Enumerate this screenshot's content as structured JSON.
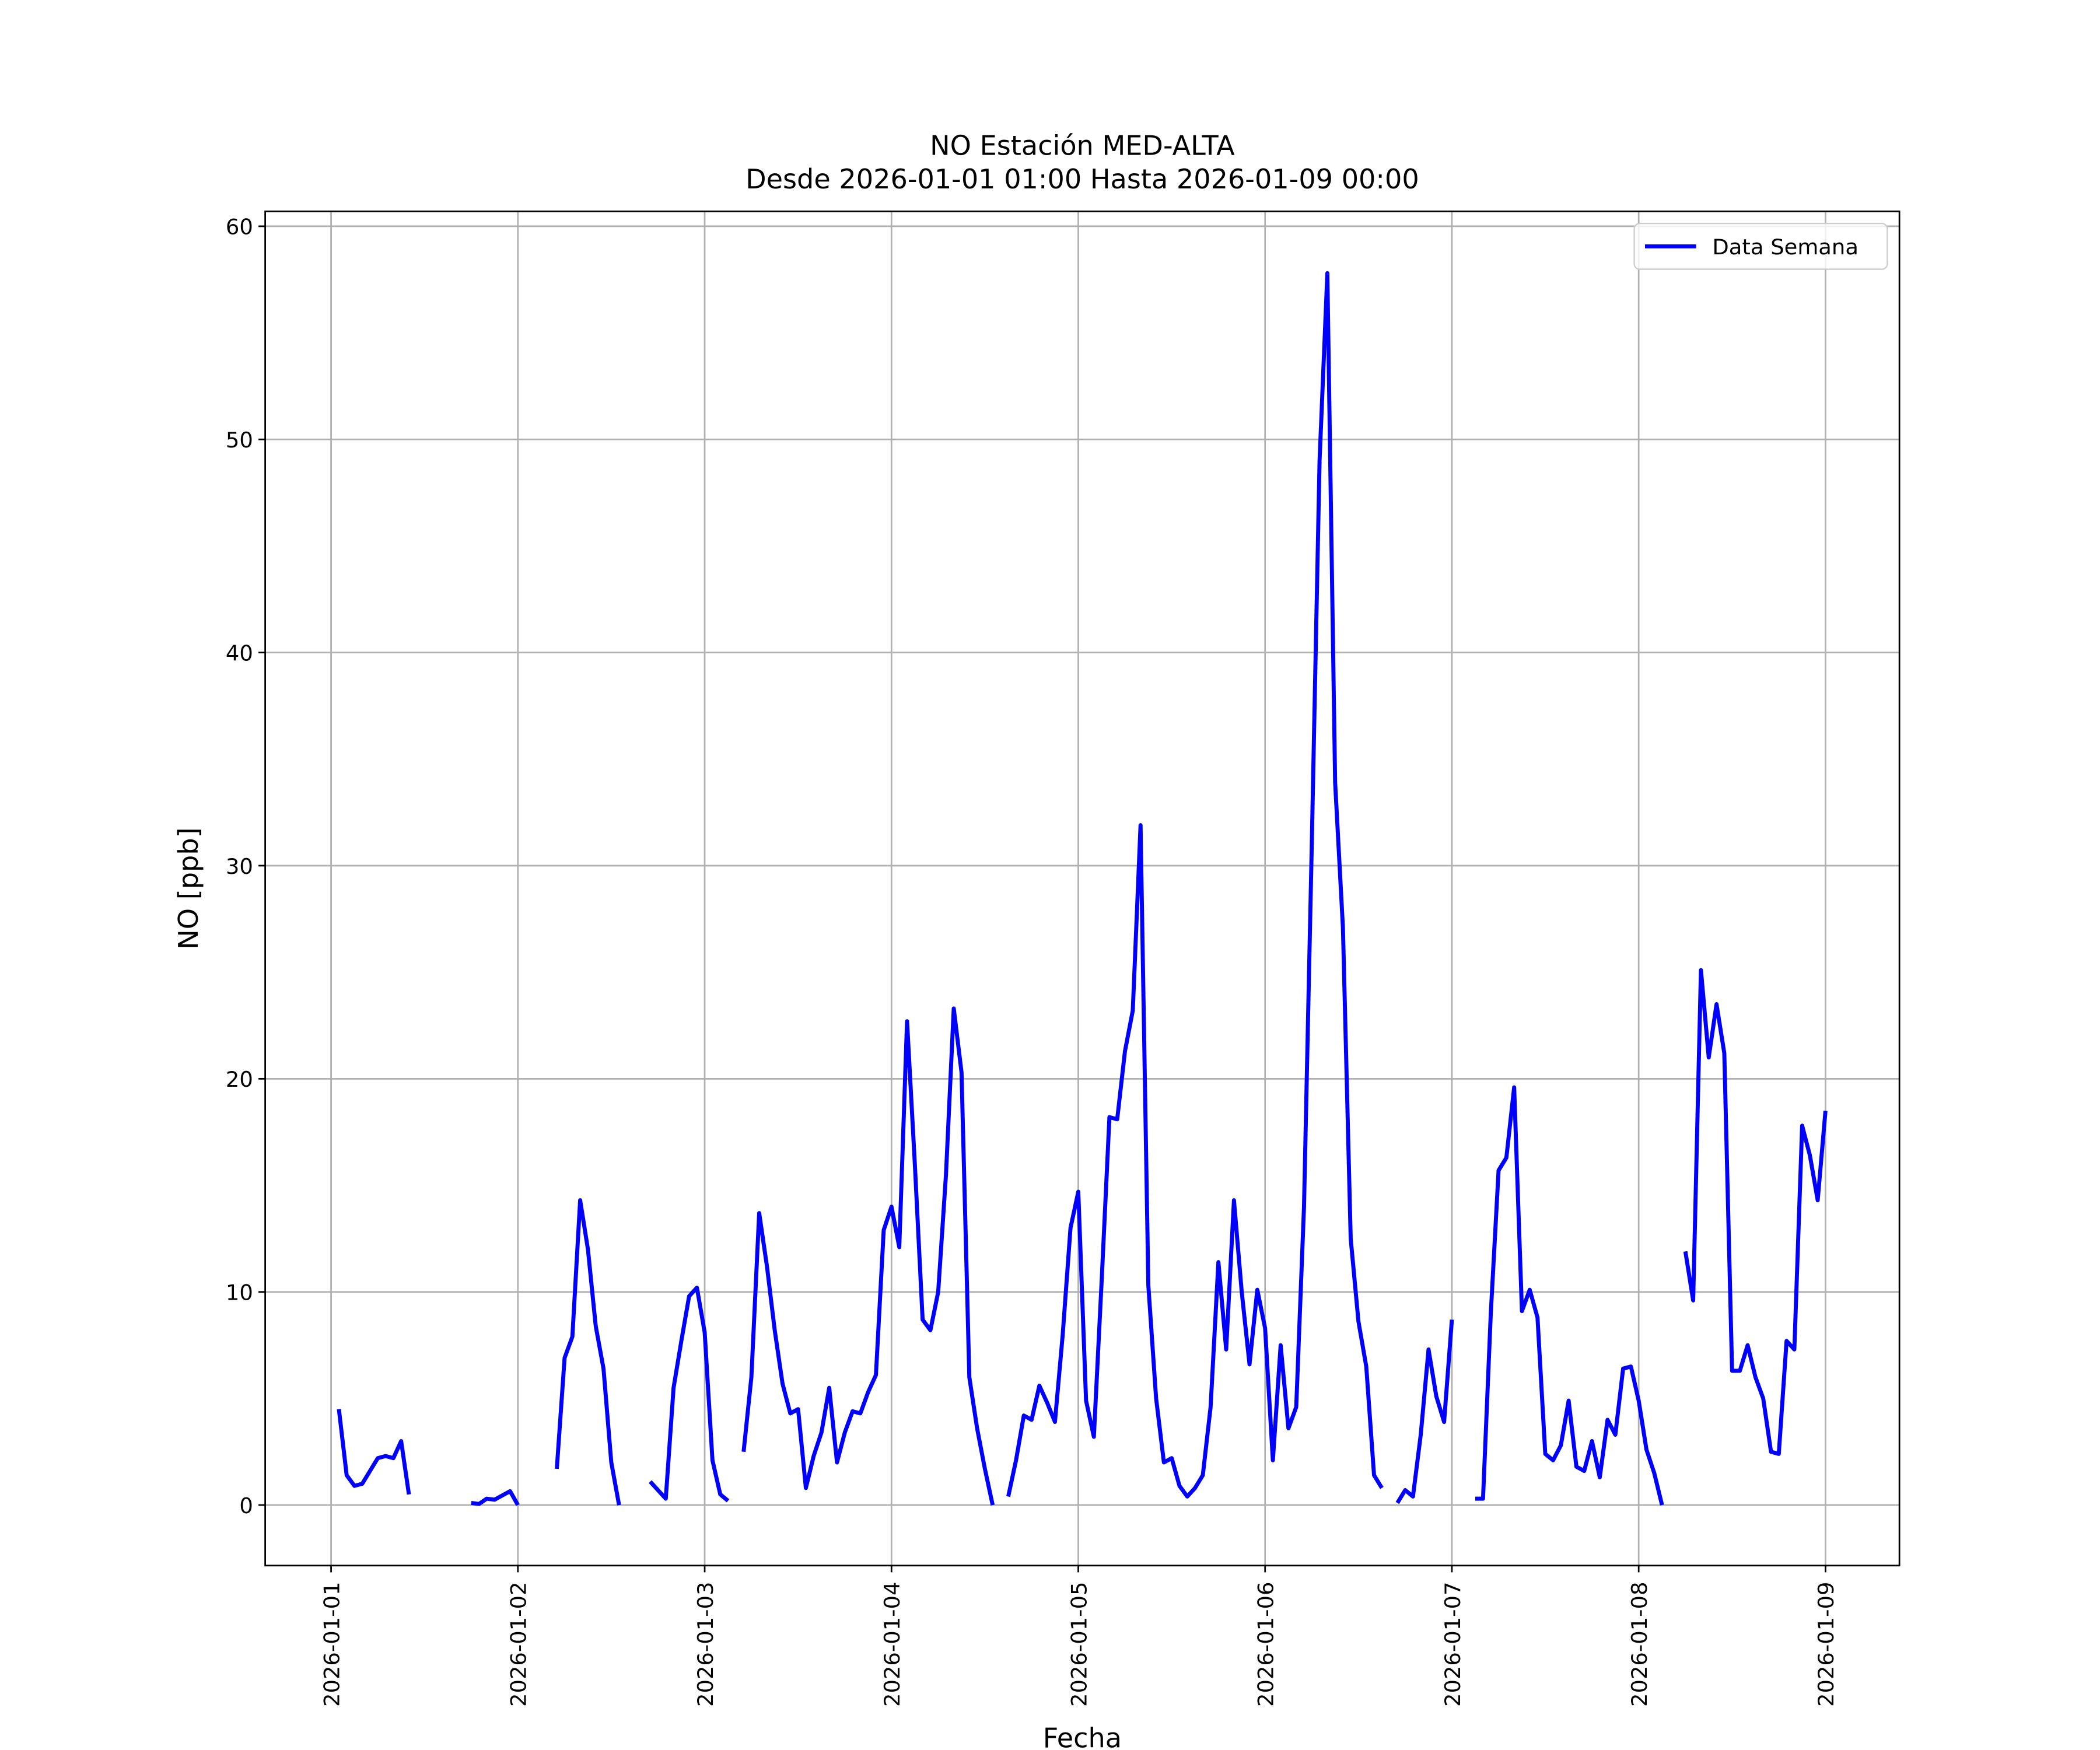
{
  "chart_data": {
    "type": "line",
    "title": "NO Estación MED-ALTA",
    "subtitle": "Desde 2026-01-01 01:00 Hasta 2026-01-09 00:00",
    "x_label": "Fecha",
    "y_label": "NO [ppb]",
    "grid": true,
    "legend": "upper right",
    "xlim": [
      "2025-12-31 15:32",
      "2026-01-09 09:30"
    ],
    "xticks": [
      "2026-01-01",
      "2026-01-02",
      "2026-01-03",
      "2026-01-04",
      "2026-01-05",
      "2026-01-06",
      "2026-01-07",
      "2026-01-08",
      "2026-01-09"
    ],
    "ylim": [
      -2.84,
      60.7
    ],
    "yticks": [
      0,
      10,
      20,
      30,
      40,
      50,
      60
    ],
    "x": [
      "2026-01-01 01:00",
      "2026-01-01 02:00",
      "2026-01-01 03:00",
      "2026-01-01 04:00",
      "2026-01-01 05:00",
      "2026-01-01 06:00",
      "2026-01-01 07:00",
      "2026-01-01 08:00",
      "2026-01-01 09:00",
      "2026-01-01 10:00",
      "2026-01-01 11:00",
      "2026-01-01 12:00",
      "2026-01-01 13:00",
      "2026-01-01 14:00",
      "2026-01-01 15:00",
      "2026-01-01 16:00",
      "2026-01-01 17:00",
      "2026-01-01 18:00",
      "2026-01-01 19:00",
      "2026-01-01 20:00",
      "2026-01-01 21:00",
      "2026-01-01 22:00",
      "2026-01-01 23:00",
      "2026-01-02 00:00",
      "2026-01-02 01:00",
      "2026-01-02 02:00",
      "2026-01-02 03:00",
      "2026-01-02 04:00",
      "2026-01-02 05:00",
      "2026-01-02 06:00",
      "2026-01-02 07:00",
      "2026-01-02 08:00",
      "2026-01-02 09:00",
      "2026-01-02 10:00",
      "2026-01-02 11:00",
      "2026-01-02 12:00",
      "2026-01-02 13:00",
      "2026-01-02 14:00",
      "2026-01-02 15:00",
      "2026-01-02 16:00",
      "2026-01-02 17:00",
      "2026-01-02 18:00",
      "2026-01-02 19:00",
      "2026-01-02 20:00",
      "2026-01-02 21:00",
      "2026-01-02 22:00",
      "2026-01-02 23:00",
      "2026-01-03 00:00",
      "2026-01-03 01:00",
      "2026-01-03 02:00",
      "2026-01-03 03:00",
      "2026-01-03 04:00",
      "2026-01-03 05:00",
      "2026-01-03 06:00",
      "2026-01-03 07:00",
      "2026-01-03 08:00",
      "2026-01-03 09:00",
      "2026-01-03 10:00",
      "2026-01-03 11:00",
      "2026-01-03 12:00",
      "2026-01-03 13:00",
      "2026-01-03 14:00",
      "2026-01-03 15:00",
      "2026-01-03 16:00",
      "2026-01-03 17:00",
      "2026-01-03 18:00",
      "2026-01-03 19:00",
      "2026-01-03 20:00",
      "2026-01-03 21:00",
      "2026-01-03 22:00",
      "2026-01-03 23:00",
      "2026-01-04 00:00",
      "2026-01-04 01:00",
      "2026-01-04 02:00",
      "2026-01-04 03:00",
      "2026-01-04 04:00",
      "2026-01-04 05:00",
      "2026-01-04 06:00",
      "2026-01-04 07:00",
      "2026-01-04 08:00",
      "2026-01-04 09:00",
      "2026-01-04 10:00",
      "2026-01-04 11:00",
      "2026-01-04 12:00",
      "2026-01-04 13:00",
      "2026-01-04 14:00",
      "2026-01-04 15:00",
      "2026-01-04 16:00",
      "2026-01-04 17:00",
      "2026-01-04 18:00",
      "2026-01-04 19:00",
      "2026-01-04 20:00",
      "2026-01-04 21:00",
      "2026-01-04 22:00",
      "2026-01-04 23:00",
      "2026-01-05 00:00",
      "2026-01-05 01:00",
      "2026-01-05 02:00",
      "2026-01-05 03:00",
      "2026-01-05 04:00",
      "2026-01-05 05:00",
      "2026-01-05 06:00",
      "2026-01-05 07:00",
      "2026-01-05 08:00",
      "2026-01-05 09:00",
      "2026-01-05 10:00",
      "2026-01-05 11:00",
      "2026-01-05 12:00",
      "2026-01-05 13:00",
      "2026-01-05 14:00",
      "2026-01-05 15:00",
      "2026-01-05 16:00",
      "2026-01-05 17:00",
      "2026-01-05 18:00",
      "2026-01-05 19:00",
      "2026-01-05 20:00",
      "2026-01-05 21:00",
      "2026-01-05 22:00",
      "2026-01-05 23:00",
      "2026-01-06 00:00",
      "2026-01-06 01:00",
      "2026-01-06 02:00",
      "2026-01-06 03:00",
      "2026-01-06 04:00",
      "2026-01-06 05:00",
      "2026-01-06 06:00",
      "2026-01-06 07:00",
      "2026-01-06 08:00",
      "2026-01-06 09:00",
      "2026-01-06 10:00",
      "2026-01-06 11:00",
      "2026-01-06 12:00",
      "2026-01-06 13:00",
      "2026-01-06 14:00",
      "2026-01-06 15:00",
      "2026-01-06 16:00",
      "2026-01-06 17:00",
      "2026-01-06 18:00",
      "2026-01-06 19:00",
      "2026-01-06 20:00",
      "2026-01-06 21:00",
      "2026-01-06 22:00",
      "2026-01-06 23:00",
      "2026-01-07 00:00",
      "2026-01-07 01:00",
      "2026-01-07 02:00",
      "2026-01-07 03:00",
      "2026-01-07 04:00",
      "2026-01-07 05:00",
      "2026-01-07 06:00",
      "2026-01-07 07:00",
      "2026-01-07 08:00",
      "2026-01-07 09:00",
      "2026-01-07 10:00",
      "2026-01-07 11:00",
      "2026-01-07 12:00",
      "2026-01-07 13:00",
      "2026-01-07 14:00",
      "2026-01-07 15:00",
      "2026-01-07 16:00",
      "2026-01-07 17:00",
      "2026-01-07 18:00",
      "2026-01-07 19:00",
      "2026-01-07 20:00",
      "2026-01-07 21:00",
      "2026-01-07 22:00",
      "2026-01-07 23:00",
      "2026-01-08 00:00",
      "2026-01-08 01:00",
      "2026-01-08 02:00",
      "2026-01-08 03:00",
      "2026-01-08 04:00",
      "2026-01-08 05:00",
      "2026-01-08 06:00",
      "2026-01-08 07:00",
      "2026-01-08 08:00",
      "2026-01-08 09:00",
      "2026-01-08 10:00",
      "2026-01-08 11:00",
      "2026-01-08 12:00",
      "2026-01-08 13:00",
      "2026-01-08 14:00",
      "2026-01-08 15:00",
      "2026-01-08 16:00",
      "2026-01-08 17:00",
      "2026-01-08 18:00",
      "2026-01-08 19:00",
      "2026-01-08 20:00",
      "2026-01-08 21:00",
      "2026-01-08 22:00",
      "2026-01-08 23:00",
      "2026-01-09 00:00"
    ],
    "series": [
      {
        "name": "Data Semana",
        "color": "#0000ff",
        "values": [
          4.5,
          1.4,
          0.9,
          1.0,
          1.6,
          2.2,
          2.3,
          2.2,
          3.0,
          0.5,
          null,
          null,
          null,
          null,
          null,
          null,
          null,
          0.1,
          0.05,
          0.3,
          0.25,
          0.45,
          0.65,
          0.0,
          null,
          null,
          null,
          null,
          1.7,
          6.9,
          7.9,
          14.3,
          12.0,
          8.4,
          6.4,
          2.0,
          0.0,
          null,
          null,
          null,
          1.1,
          0.7,
          0.3,
          5.5,
          7.7,
          9.8,
          10.2,
          8.1,
          2.1,
          0.5,
          0.2,
          null,
          2.5,
          6.0,
          13.7,
          11.2,
          8.2,
          5.7,
          4.3,
          4.5,
          0.8,
          2.3,
          3.4,
          5.5,
          2.0,
          3.4,
          4.4,
          4.3,
          5.3,
          6.1,
          12.9,
          14.0,
          12.1,
          22.7,
          16.0,
          8.7,
          8.2,
          10.0,
          15.5,
          23.3,
          20.3,
          6.0,
          3.6,
          1.7,
          0.0,
          null,
          0.4,
          2.1,
          4.2,
          4.0,
          5.6,
          4.8,
          3.9,
          8.0,
          13.0,
          14.7,
          4.9,
          3.2,
          10.5,
          18.2,
          18.1,
          21.3,
          23.2,
          31.9,
          10.3,
          5.0,
          2.0,
          2.2,
          0.9,
          0.4,
          0.8,
          1.4,
          4.6,
          11.4,
          7.3,
          14.3,
          10.0,
          6.6,
          10.1,
          8.3,
          2.1,
          7.5,
          3.6,
          4.6,
          14.0,
          31.0,
          49.0,
          57.8,
          33.9,
          27.1,
          12.5,
          8.6,
          6.5,
          1.4,
          0.8,
          null,
          0.1,
          0.7,
          0.4,
          3.3,
          7.3,
          5.1,
          3.9,
          8.7,
          null,
          null,
          0.3,
          0.3,
          9.0,
          15.7,
          16.3,
          19.6,
          9.1,
          10.1,
          8.8,
          2.4,
          2.1,
          2.8,
          4.9,
          1.8,
          1.6,
          3.0,
          1.3,
          4.0,
          3.3,
          6.4,
          6.5,
          4.9,
          2.6,
          1.5,
          0.0,
          null,
          null,
          11.9,
          9.6,
          25.1,
          21.0,
          23.5,
          21.2,
          6.3,
          6.3,
          7.5,
          6.0,
          5.0,
          2.5,
          2.4,
          7.7,
          7.3,
          17.8,
          16.4,
          14.3,
          18.5
        ]
      }
    ]
  }
}
